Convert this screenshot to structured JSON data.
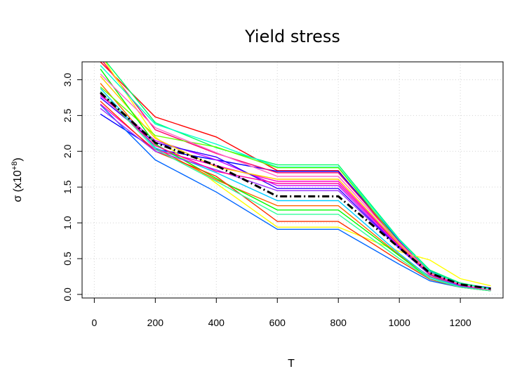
{
  "chart_data": {
    "type": "line",
    "title": "Yield stress",
    "xlabel": "T",
    "ylabel": "σ (x10",
    "ylabel_exp": "+8",
    "ylabel_close": ")",
    "xlim": [
      -40,
      1340
    ],
    "ylim": [
      -0.05,
      3.25
    ],
    "grid": true,
    "xticks": [
      0,
      200,
      400,
      600,
      800,
      1000,
      1200
    ],
    "xtick_labels": [
      "0",
      "200",
      "400",
      "600",
      "800",
      "1000",
      "1200"
    ],
    "yticks": [
      0.0,
      0.5,
      1.0,
      1.5,
      2.0,
      2.5,
      3.0
    ],
    "ytick_labels": [
      "0.0",
      "0.5",
      "1.0",
      "1.5",
      "2.0",
      "2.5",
      "3.0"
    ],
    "x": [
      20,
      200,
      400,
      600,
      800,
      1000,
      1100,
      1200,
      1300
    ],
    "series": [
      {
        "color": "#ff0000",
        "values": [
          3.25,
          2.48,
          2.2,
          1.73,
          1.73,
          0.7,
          0.3,
          0.14,
          0.07
        ]
      },
      {
        "color": "#0000ff",
        "values": [
          2.52,
          2.03,
          1.88,
          1.72,
          1.72,
          0.75,
          0.33,
          0.15,
          0.09
        ]
      },
      {
        "color": "#00ff66",
        "values": [
          3.35,
          2.4,
          2.05,
          1.81,
          1.81,
          0.77,
          0.34,
          0.16,
          0.08
        ]
      },
      {
        "color": "#ff0066",
        "values": [
          3.3,
          2.3,
          1.97,
          1.7,
          1.7,
          0.73,
          0.31,
          0.14,
          0.06
        ]
      },
      {
        "color": "#ffff00",
        "values": [
          3.35,
          2.2,
          1.55,
          0.94,
          0.94,
          0.6,
          0.48,
          0.22,
          0.12
        ]
      },
      {
        "color": "#0066ff",
        "values": [
          2.65,
          1.88,
          1.43,
          0.91,
          0.91,
          0.42,
          0.19,
          0.1,
          0.05
        ]
      },
      {
        "color": "#00ffcc",
        "values": [
          3.2,
          2.38,
          2.1,
          1.78,
          1.78,
          0.76,
          0.32,
          0.15,
          0.07
        ]
      },
      {
        "color": "#ff6600",
        "values": [
          2.95,
          2.05,
          1.6,
          1.24,
          1.24,
          0.55,
          0.25,
          0.12,
          0.06
        ]
      },
      {
        "color": "#cc00ff",
        "values": [
          2.78,
          2.15,
          1.88,
          1.52,
          1.52,
          0.66,
          0.28,
          0.13,
          0.06
        ]
      },
      {
        "color": "#66ff00",
        "values": [
          2.9,
          2.22,
          2.06,
          1.77,
          1.77,
          0.72,
          0.3,
          0.14,
          0.06
        ]
      },
      {
        "color": "#00ccff",
        "values": [
          2.88,
          2.05,
          1.7,
          1.31,
          1.31,
          0.57,
          0.24,
          0.11,
          0.05
        ]
      },
      {
        "color": "#ff00cc",
        "values": [
          2.66,
          2.02,
          1.8,
          1.58,
          1.58,
          0.69,
          0.28,
          0.13,
          0.06
        ]
      },
      {
        "color": "#3300ff",
        "values": [
          2.75,
          2.12,
          1.92,
          1.48,
          1.48,
          0.65,
          0.27,
          0.12,
          0.06
        ]
      },
      {
        "color": "#ffcc00",
        "values": [
          3.05,
          2.18,
          1.78,
          1.61,
          1.61,
          0.7,
          0.29,
          0.13,
          0.06
        ]
      },
      {
        "color": "#00ff00",
        "values": [
          3.15,
          2.1,
          1.62,
          1.18,
          1.18,
          0.54,
          0.22,
          0.1,
          0.05
        ]
      },
      {
        "color": "#ff3300",
        "values": [
          2.7,
          2.0,
          1.65,
          1.02,
          1.02,
          0.47,
          0.21,
          0.1,
          0.05
        ]
      },
      {
        "color": "#9933ff",
        "values": [
          2.6,
          2.0,
          1.74,
          1.45,
          1.45,
          0.64,
          0.27,
          0.12,
          0.06
        ]
      },
      {
        "color": "#ff0099",
        "values": [
          2.8,
          2.08,
          1.72,
          1.55,
          1.55,
          0.68,
          0.28,
          0.13,
          0.06
        ]
      },
      {
        "color": "#33ff99",
        "values": [
          2.84,
          2.03,
          1.58,
          1.12,
          1.12,
          0.5,
          0.22,
          0.1,
          0.05
        ]
      },
      {
        "color": "#ff66cc",
        "values": [
          3.08,
          2.33,
          1.98,
          1.65,
          1.65,
          0.72,
          0.3,
          0.14,
          0.06
        ]
      }
    ],
    "mean": {
      "color": "#000000",
      "values": [
        2.82,
        2.12,
        1.8,
        1.37,
        1.37,
        0.65,
        0.3,
        0.14,
        0.08
      ]
    }
  }
}
